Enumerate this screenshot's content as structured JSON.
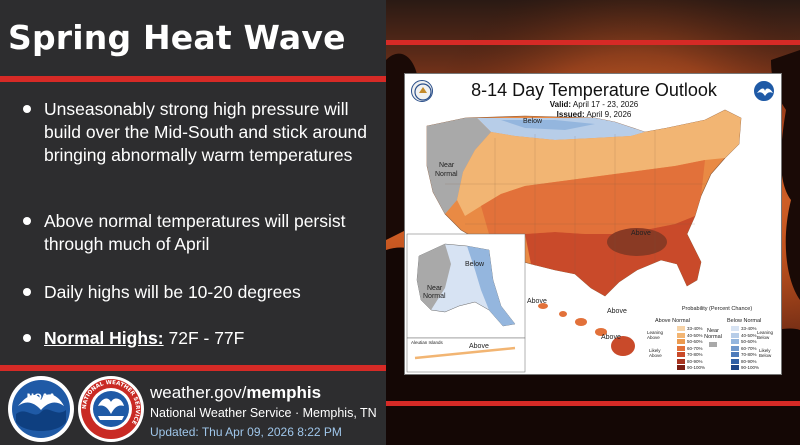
{
  "title": "Spring Heat Wave",
  "bullets": [
    "Unseasonably strong high pressure will build over the Mid-South and stick around bringing abnormally warm temperatures",
    "Above normal temperatures will persist through much of April",
    "Daily highs will be 10-20 degrees"
  ],
  "normal_highs": {
    "label": "Normal Highs:",
    "value": "72F - 77F"
  },
  "footer": {
    "site_prefix": "weather.gov/",
    "site_bold": "memphis",
    "office": "National Weather Service · Memphis, TN",
    "updated": "Updated: Thu Apr 09, 2026 8:22 PM",
    "nws_ring_text": "NATIONAL WEATHER SERVICE",
    "noaa_text": "NOAA"
  },
  "map": {
    "title": "8-14 Day Temperature Outlook",
    "valid_label": "Valid:",
    "valid": "April 17 - 23, 2026",
    "issued_label": "Issued:",
    "issued": "April 9, 2026",
    "labels": {
      "below": "Below",
      "near": "Near",
      "normal": "Normal",
      "above_main": "Above",
      "alaska_below": "Below",
      "alaska_near": "Near",
      "alaska_normal": "Normal",
      "aleutian": "Aleutian Islands",
      "aleutian_above": "Above",
      "hawaii_above_1": "Above",
      "hawaii_above_2": "Above",
      "hawaii_above_3": "Above"
    },
    "legend": {
      "title": "Probability (Percent Chance)",
      "above_label": "Above Normal",
      "below_label": "Below Normal",
      "near_label": "Near Normal",
      "leaning_above": "Leaning Above",
      "likely_above": "Likely Above",
      "leaning_below": "Leaning Below",
      "likely_below": "Likely Below",
      "above_bins": [
        "33-40%",
        "40-50%",
        "50-60%",
        "60-70%",
        "70-80%",
        "80-90%",
        "90-100%"
      ],
      "below_bins": [
        "33-40%",
        "40-50%",
        "50-60%",
        "60-70%",
        "70-80%",
        "80-90%",
        "90-100%"
      ],
      "above_colors": [
        "#f6d3a8",
        "#f2b573",
        "#ec9a4f",
        "#e2713a",
        "#c94a2a",
        "#a8331f",
        "#7a1e14"
      ],
      "below_colors": [
        "#d7e3f3",
        "#b7cde8",
        "#94b6de",
        "#6f98cc",
        "#4d7bbb",
        "#3160a6",
        "#1f4688"
      ],
      "near_color": "#a9a9a9"
    }
  },
  "colors": {
    "accent_red": "#d62a26",
    "panel": "#2d2d2f",
    "updated_text": "#9fc6ea"
  },
  "icons": [
    "noaa-logo-icon",
    "nws-logo-icon",
    "commerce-seal-icon",
    "noaa-mini-icon"
  ]
}
